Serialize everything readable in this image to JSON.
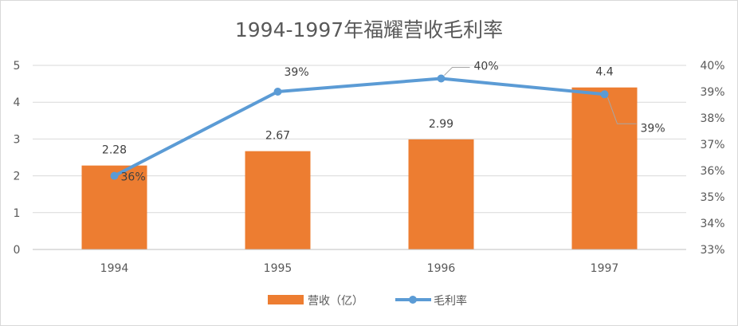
{
  "chart_data": {
    "type": "bar",
    "title": "1994-1997年福耀营收毛利率",
    "categories": [
      "1994",
      "1995",
      "1996",
      "1997"
    ],
    "series": [
      {
        "name": "营收（亿）",
        "type": "bar",
        "axis": "left",
        "values": [
          2.28,
          2.67,
          2.99,
          4.4
        ],
        "labels": [
          "2.28",
          "2.67",
          "2.99",
          "4.4"
        ],
        "color": "#ed7d31"
      },
      {
        "name": "毛利率",
        "type": "line",
        "axis": "right",
        "values": [
          35.8,
          39.0,
          39.5,
          38.9
        ],
        "labels": [
          "36%",
          "39%",
          "40%",
          "39%"
        ],
        "color": "#5b9bd5"
      }
    ],
    "left_axis": {
      "ylim": [
        0,
        5
      ],
      "ticks": [
        "0",
        "1",
        "2",
        "3",
        "4",
        "5"
      ]
    },
    "right_axis": {
      "ylim": [
        33,
        40
      ],
      "ticks": [
        "33%",
        "34%",
        "35%",
        "36%",
        "37%",
        "38%",
        "39%",
        "40%"
      ]
    },
    "grid": true,
    "legend_position": "bottom",
    "gridline_color": "#d9d9d9",
    "axis_line_color": "#bfbfbf"
  }
}
